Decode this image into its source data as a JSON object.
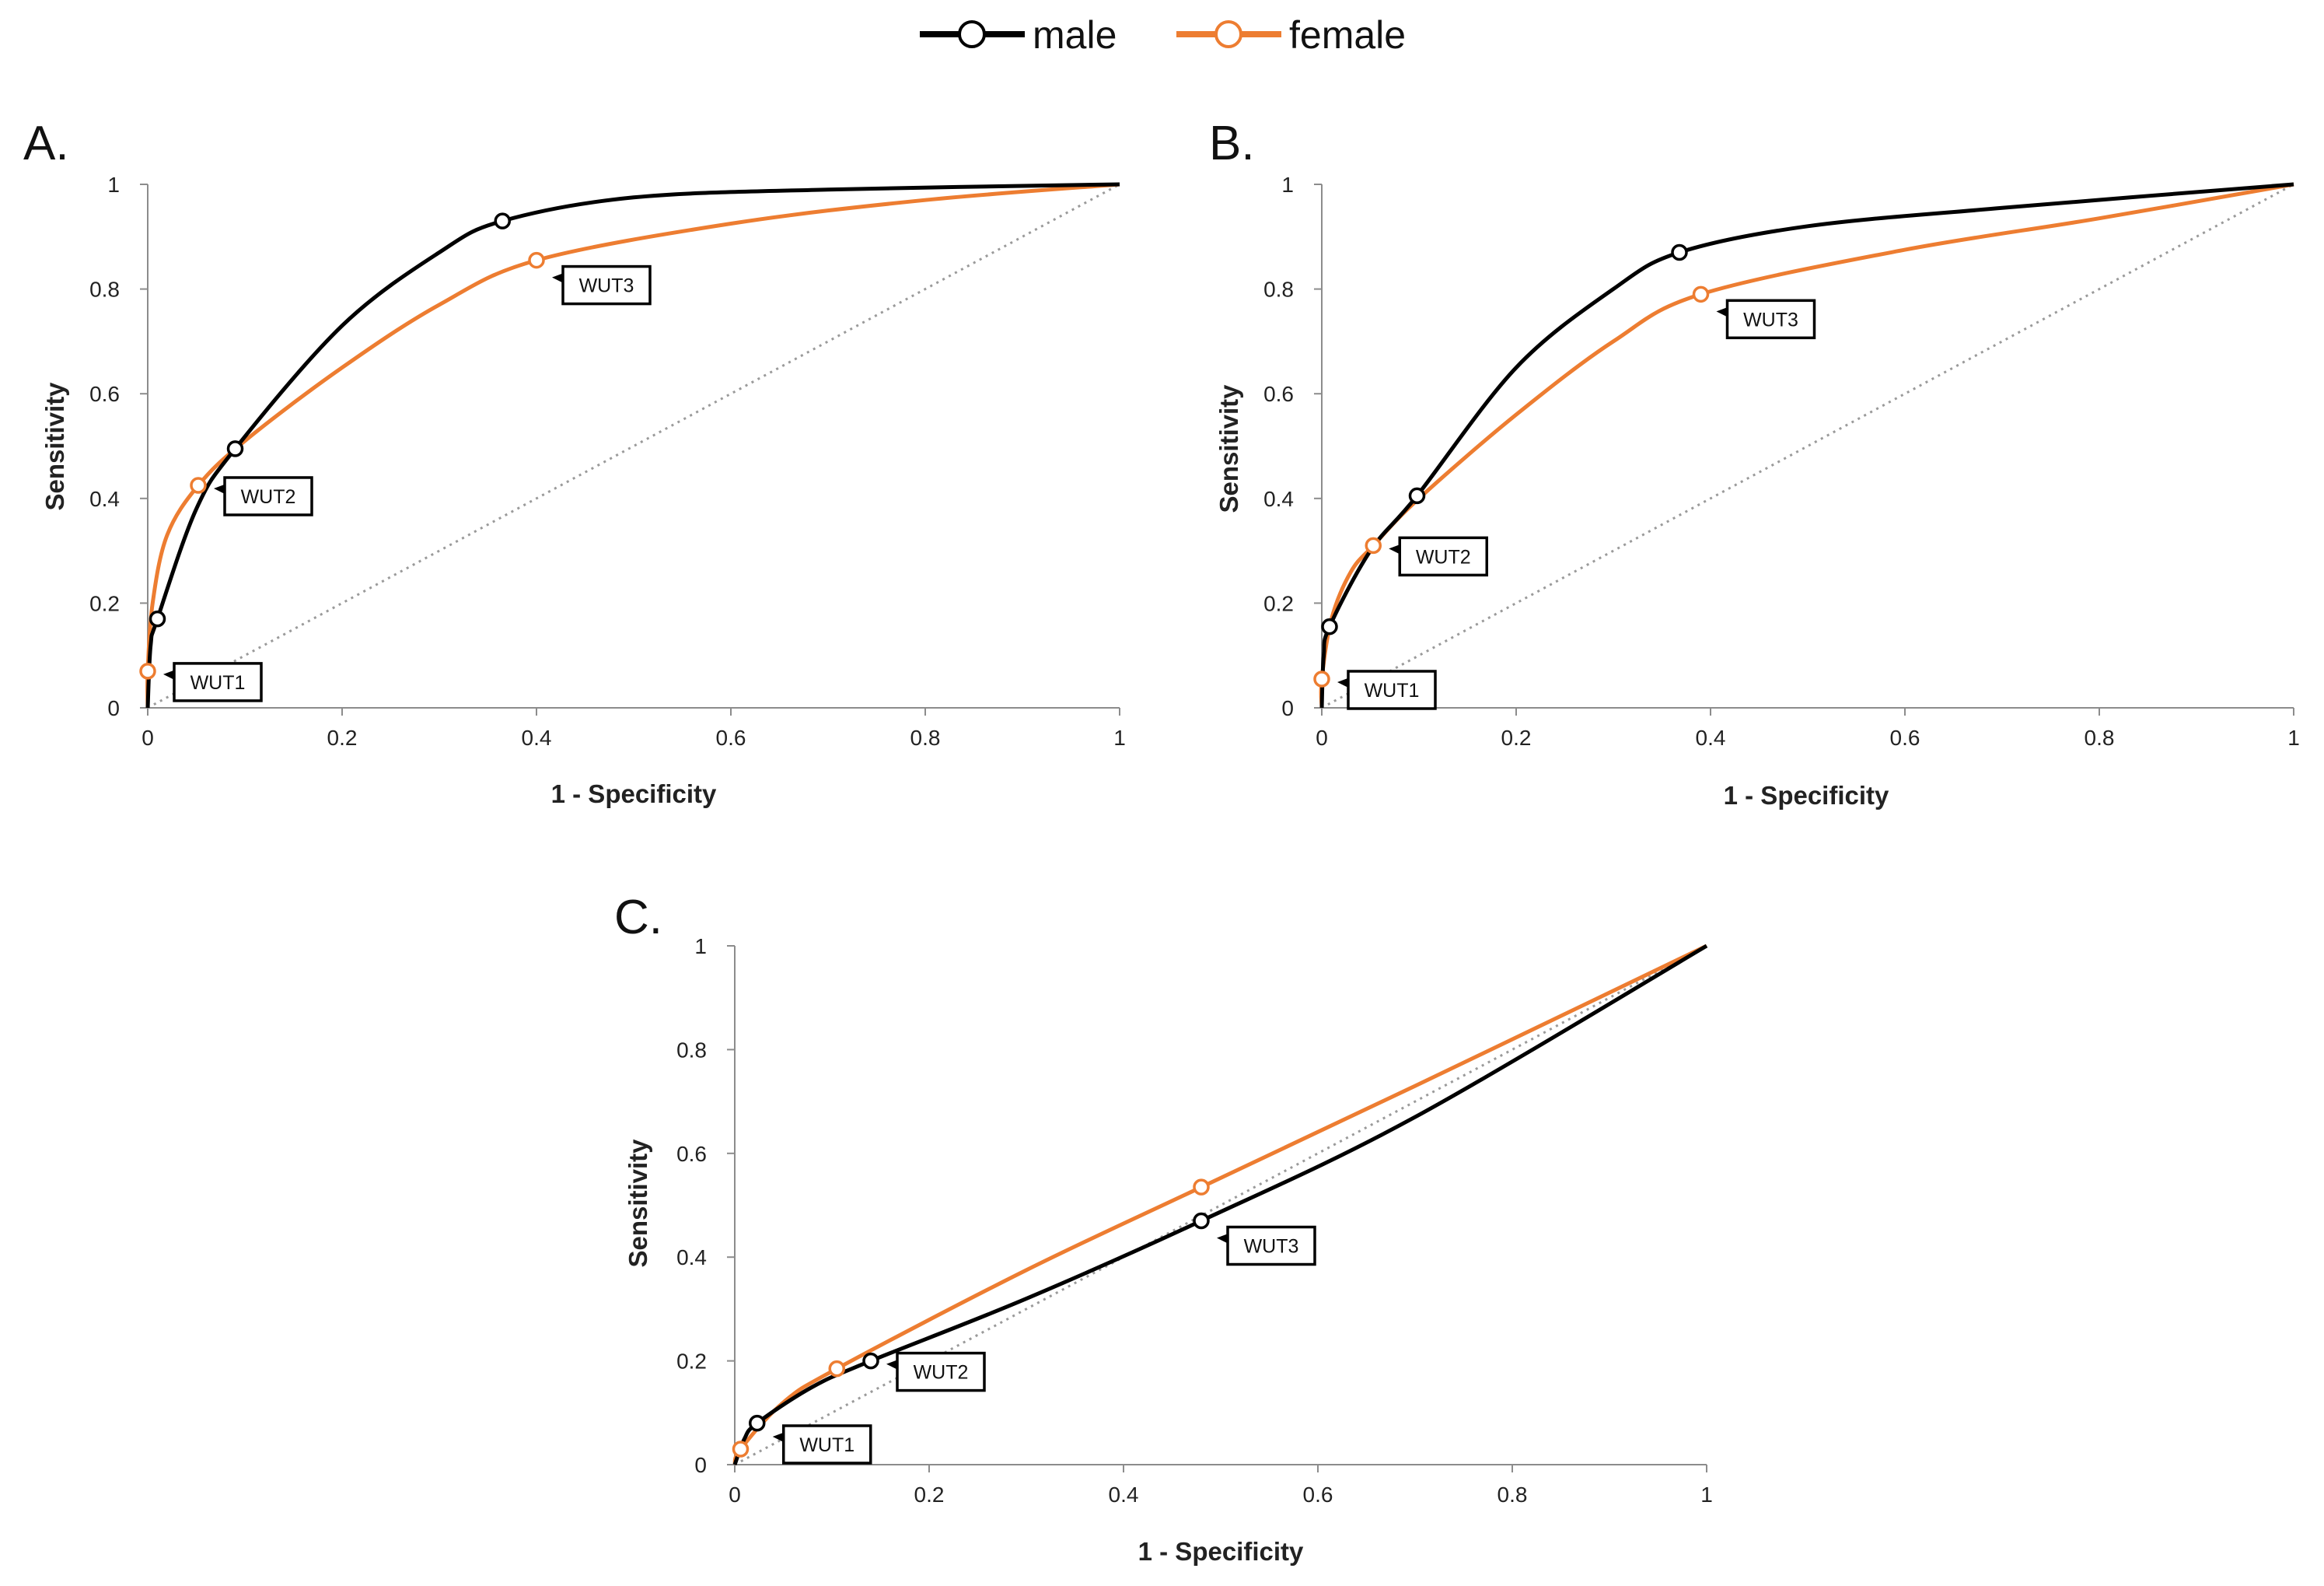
{
  "legend": {
    "male": "male",
    "female": "female"
  },
  "colors": {
    "male": "#000000",
    "female": "#ED7D31",
    "reference": "#9a9a9a"
  },
  "chart_data": [
    {
      "type": "line",
      "panel_label": "A.",
      "xlabel": "1 - Specificity",
      "ylabel": "Sensitivity",
      "xlim": [
        0,
        1
      ],
      "ylim": [
        0,
        1
      ],
      "xticks": [
        "0",
        "0.2",
        "0.4",
        "0.6",
        "0.8",
        "1"
      ],
      "yticks": [
        "0",
        "0.2",
        "0.4",
        "0.6",
        "0.8",
        "1"
      ],
      "reference_line": [
        [
          0,
          0
        ],
        [
          1,
          1
        ]
      ],
      "series": [
        {
          "name": "male",
          "points": [
            [
              0,
              0
            ],
            [
              0.003,
              0.12
            ],
            [
              0.01,
              0.17
            ],
            [
              0.05,
              0.38
            ],
            [
              0.09,
              0.495
            ],
            [
              0.2,
              0.73
            ],
            [
              0.3,
              0.87
            ],
            [
              0.365,
              0.93
            ],
            [
              0.5,
              0.975
            ],
            [
              0.7,
              0.99
            ],
            [
              1,
              1
            ]
          ],
          "markers": [
            [
              0.01,
              0.17
            ],
            [
              0.09,
              0.495
            ],
            [
              0.365,
              0.93
            ]
          ]
        },
        {
          "name": "female",
          "points": [
            [
              0,
              0
            ],
            [
              0,
              0.07
            ],
            [
              0.005,
              0.2
            ],
            [
              0.02,
              0.33
            ],
            [
              0.052,
              0.425
            ],
            [
              0.1,
              0.51
            ],
            [
              0.2,
              0.65
            ],
            [
              0.3,
              0.77
            ],
            [
              0.4,
              0.855
            ],
            [
              0.6,
              0.925
            ],
            [
              0.8,
              0.97
            ],
            [
              1,
              1
            ]
          ],
          "markers": [
            [
              0,
              0.07
            ],
            [
              0.052,
              0.425
            ],
            [
              0.4,
              0.855
            ]
          ]
        }
      ],
      "annotations": [
        {
          "text": "WUT1",
          "x": 0,
          "y": 0.07
        },
        {
          "text": "WUT2",
          "x": 0.052,
          "y": 0.425
        },
        {
          "text": "WUT3",
          "x": 0.4,
          "y": 0.855
        }
      ]
    },
    {
      "type": "line",
      "panel_label": "B.",
      "xlabel": "1 - Specificity",
      "ylabel": "Sensitivity",
      "xlim": [
        0,
        1
      ],
      "ylim": [
        0,
        1
      ],
      "xticks": [
        "0",
        "0.2",
        "0.4",
        "0.6",
        "0.8",
        "1"
      ],
      "yticks": [
        "0",
        "0.2",
        "0.4",
        "0.6",
        "0.8",
        "1"
      ],
      "reference_line": [
        [
          0,
          0
        ],
        [
          1,
          1
        ]
      ],
      "series": [
        {
          "name": "male",
          "points": [
            [
              0,
              0
            ],
            [
              0.002,
              0.1
            ],
            [
              0.008,
              0.155
            ],
            [
              0.05,
              0.3
            ],
            [
              0.098,
              0.405
            ],
            [
              0.2,
              0.65
            ],
            [
              0.3,
              0.8
            ],
            [
              0.368,
              0.87
            ],
            [
              0.5,
              0.92
            ],
            [
              0.7,
              0.955
            ],
            [
              1,
              1
            ]
          ],
          "markers": [
            [
              0.008,
              0.155
            ],
            [
              0.098,
              0.405
            ],
            [
              0.368,
              0.87
            ]
          ]
        },
        {
          "name": "female",
          "points": [
            [
              0,
              0
            ],
            [
              0,
              0.055
            ],
            [
              0.01,
              0.17
            ],
            [
              0.03,
              0.26
            ],
            [
              0.053,
              0.31
            ],
            [
              0.1,
              0.4
            ],
            [
              0.2,
              0.56
            ],
            [
              0.3,
              0.7
            ],
            [
              0.39,
              0.79
            ],
            [
              0.6,
              0.875
            ],
            [
              0.8,
              0.935
            ],
            [
              1,
              1
            ]
          ],
          "markers": [
            [
              0,
              0.055
            ],
            [
              0.053,
              0.31
            ],
            [
              0.39,
              0.79
            ]
          ]
        }
      ],
      "annotations": [
        {
          "text": "WUT1",
          "x": 0,
          "y": 0.055
        },
        {
          "text": "WUT2",
          "x": 0.053,
          "y": 0.31
        },
        {
          "text": "WUT3",
          "x": 0.39,
          "y": 0.79
        }
      ]
    },
    {
      "type": "line",
      "panel_label": "C.",
      "xlabel": "1 - Specificity",
      "ylabel": "Sensitivity",
      "xlim": [
        0,
        1
      ],
      "ylim": [
        0,
        1
      ],
      "xticks": [
        "0",
        "0.2",
        "0.4",
        "0.6",
        "0.8",
        "1"
      ],
      "yticks": [
        "0",
        "0.2",
        "0.4",
        "0.6",
        "0.8",
        "1"
      ],
      "reference_line": [
        [
          0,
          0
        ],
        [
          1,
          1
        ]
      ],
      "series": [
        {
          "name": "male",
          "points": [
            [
              0,
              0
            ],
            [
              0.01,
              0.05
            ],
            [
              0.023,
              0.08
            ],
            [
              0.08,
              0.15
            ],
            [
              0.14,
              0.2
            ],
            [
              0.3,
              0.32
            ],
            [
              0.48,
              0.47
            ],
            [
              0.7,
              0.67
            ],
            [
              1,
              1
            ]
          ],
          "markers": [
            [
              0.023,
              0.08
            ],
            [
              0.14,
              0.2
            ],
            [
              0.48,
              0.47
            ]
          ]
        },
        {
          "name": "female",
          "points": [
            [
              0,
              0
            ],
            [
              0.006,
              0.03
            ],
            [
              0.05,
              0.12
            ],
            [
              0.105,
              0.185
            ],
            [
              0.3,
              0.375
            ],
            [
              0.48,
              0.535
            ],
            [
              0.7,
              0.73
            ],
            [
              1,
              1
            ]
          ],
          "markers": [
            [
              0.006,
              0.03
            ],
            [
              0.105,
              0.185
            ],
            [
              0.48,
              0.535
            ]
          ]
        }
      ],
      "annotations": [
        {
          "text": "WUT1",
          "x": 0.023,
          "y": 0.06
        },
        {
          "text": "WUT2",
          "x": 0.14,
          "y": 0.2
        },
        {
          "text": "WUT3",
          "x": 0.48,
          "y": 0.47
        }
      ]
    }
  ]
}
